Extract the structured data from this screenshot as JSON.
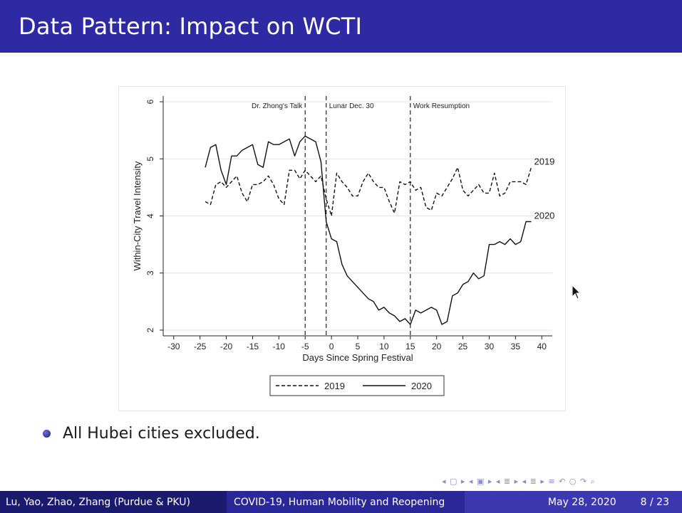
{
  "slide": {
    "title": "Data Pattern: Impact on WCTI",
    "bullet": "All Hubei cities excluded.",
    "nav_symbols": "◂ ▢ ▸  ◂ ▣ ▸  ◂ ≣ ▸  ◂ ≣ ▸   ≡   ↶ ○ ↷ ⌕"
  },
  "footer": {
    "authors": "Lu, Yao, Zhao, Zhang (Purdue & PKU)",
    "talk_title": "COVID-19, Human Mobility and Reopening",
    "date": "May 28, 2020",
    "page": "8 / 23"
  },
  "colors": {
    "title_bar": "#2d2aa4",
    "footer_left": "#1c1a6e",
    "footer_mid": "#2a2799",
    "footer_right": "#3c39b0",
    "line": "#111111"
  },
  "chart_data": {
    "type": "line",
    "title": "",
    "xlabel": "Days Since Spring Festival",
    "ylabel": "Within-City Travel Intensity",
    "xlim": [
      -32,
      42
    ],
    "ylim": [
      1.9,
      6.1
    ],
    "xticks": [
      -30,
      -25,
      -20,
      -15,
      -10,
      -5,
      0,
      5,
      10,
      15,
      20,
      25,
      30,
      35,
      40
    ],
    "yticks": [
      2,
      3,
      4,
      5,
      6
    ],
    "grid": "horizontal",
    "legend": [
      "2019",
      "2020"
    ],
    "legend_position": "bottom",
    "vlines": [
      {
        "x": -5,
        "label": "Dr. Zhong's Talk"
      },
      {
        "x": -1,
        "label": "Lunar Dec. 30"
      },
      {
        "x": 15,
        "label": "Work Resumption"
      }
    ],
    "series": [
      {
        "name": "2019",
        "style": "dashed",
        "end_label": "2019",
        "x": [
          -24,
          -23,
          -22,
          -21,
          -20,
          -19,
          -18,
          -17,
          -16,
          -15,
          -14,
          -13,
          -12,
          -11,
          -10,
          -9,
          -8,
          -7,
          -6,
          -5,
          -4,
          -3,
          -2,
          -1,
          0,
          1,
          2,
          3,
          4,
          5,
          6,
          7,
          8,
          9,
          10,
          11,
          12,
          13,
          14,
          15,
          16,
          17,
          18,
          19,
          20,
          21,
          22,
          23,
          24,
          25,
          26,
          27,
          28,
          29,
          30,
          31,
          32,
          33,
          34,
          35,
          36,
          37,
          38
        ],
        "y": [
          4.25,
          4.2,
          4.55,
          4.6,
          4.5,
          4.6,
          4.7,
          4.4,
          4.25,
          4.55,
          4.55,
          4.6,
          4.7,
          4.55,
          4.3,
          4.2,
          4.8,
          4.8,
          4.65,
          4.8,
          4.7,
          4.6,
          4.7,
          4.3,
          4.0,
          4.75,
          4.6,
          4.5,
          4.35,
          4.35,
          4.6,
          4.75,
          4.6,
          4.5,
          4.5,
          4.25,
          4.05,
          4.6,
          4.55,
          4.6,
          4.45,
          4.5,
          4.15,
          4.1,
          4.4,
          4.35,
          4.5,
          4.65,
          4.85,
          4.45,
          4.35,
          4.45,
          4.55,
          4.4,
          4.4,
          4.75,
          4.35,
          4.4,
          4.6,
          4.6,
          4.6,
          4.55,
          4.85
        ]
      },
      {
        "name": "2020",
        "style": "solid",
        "end_label": "2020",
        "x": [
          -24,
          -23,
          -22,
          -21,
          -20,
          -19,
          -18,
          -17,
          -16,
          -15,
          -14,
          -13,
          -12,
          -11,
          -10,
          -9,
          -8,
          -7,
          -6,
          -5,
          -4,
          -3,
          -2,
          -1,
          0,
          1,
          2,
          3,
          4,
          5,
          6,
          7,
          8,
          9,
          10,
          11,
          12,
          13,
          14,
          15,
          16,
          17,
          18,
          19,
          20,
          21,
          22,
          23,
          24,
          25,
          26,
          27,
          28,
          29,
          30,
          31,
          32,
          33,
          34,
          35,
          36,
          37,
          38
        ],
        "y": [
          4.85,
          5.2,
          5.25,
          4.8,
          4.55,
          5.05,
          5.05,
          5.15,
          5.2,
          5.25,
          4.9,
          4.85,
          5.3,
          5.25,
          5.25,
          5.3,
          5.35,
          5.05,
          5.3,
          5.4,
          5.35,
          5.3,
          4.95,
          3.9,
          3.6,
          3.55,
          3.15,
          2.95,
          2.85,
          2.75,
          2.65,
          2.55,
          2.5,
          2.35,
          2.4,
          2.3,
          2.25,
          2.15,
          2.2,
          2.1,
          2.35,
          2.3,
          2.35,
          2.4,
          2.35,
          2.1,
          2.15,
          2.6,
          2.65,
          2.8,
          2.85,
          3.0,
          2.9,
          2.95,
          3.5,
          3.5,
          3.55,
          3.5,
          3.6,
          3.5,
          3.55,
          3.9,
          3.9
        ]
      }
    ]
  }
}
